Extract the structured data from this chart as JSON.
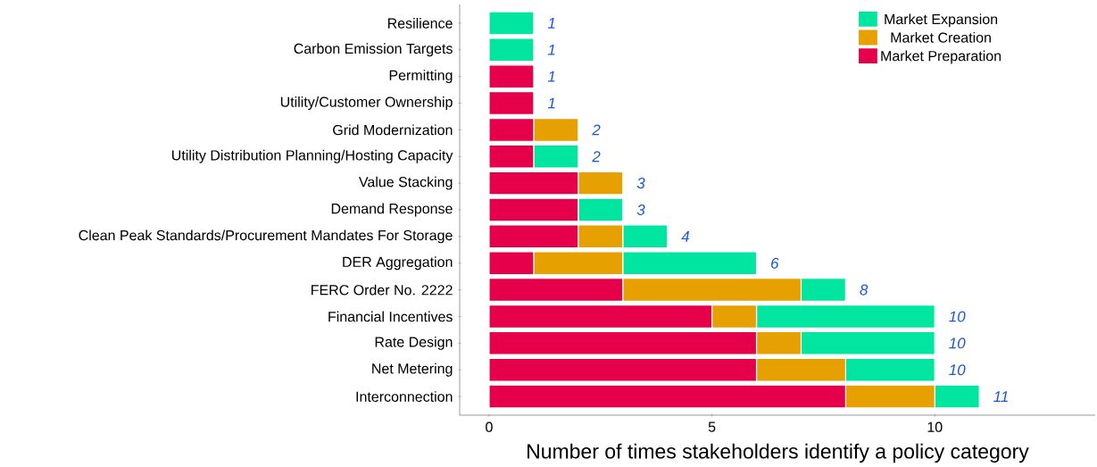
{
  "chart_data": {
    "type": "bar",
    "orientation": "horizontal",
    "stacked": true,
    "xlabel": "Number of times stakeholders identify a policy category",
    "categories": [
      "Resilience",
      "Carbon Emission Targets",
      "Permitting",
      "Utility/Customer Ownership",
      "Grid Modernization",
      "Utility Distribution Planning/Hosting Capacity",
      "Value Stacking",
      "Demand Response",
      "Clean Peak Standards/Procurement Mandates For Storage",
      "DER Aggregation",
      "FERC Order No. 2222",
      "Financial Incentives",
      "Rate Design",
      "Net Metering",
      "Interconnection"
    ],
    "series": [
      {
        "name": "Market Preparation",
        "color": "#e6004c",
        "values": [
          null,
          null,
          1,
          1,
          1,
          1,
          2,
          2,
          2,
          1,
          3,
          5,
          6,
          6,
          8
        ]
      },
      {
        "name": "Market Creation",
        "color": "#e6a000",
        "values": [
          null,
          null,
          null,
          null,
          1,
          null,
          1,
          null,
          1,
          2,
          4,
          1,
          1,
          2,
          2
        ]
      },
      {
        "name": "Market Expansion",
        "color": "#00e6a0",
        "values": [
          1,
          1,
          null,
          null,
          null,
          1,
          null,
          1,
          1,
          3,
          1,
          4,
          3,
          2,
          1
        ]
      }
    ],
    "totals": [
      "1",
      "1",
      "1",
      "1",
      "2",
      "2",
      "3",
      "3",
      "4",
      "6",
      "8",
      "10",
      "10",
      "10",
      "11"
    ],
    "xlim": [
      -0.66,
      13.6
    ],
    "xticks": [
      0,
      5,
      10
    ],
    "legend": "top right",
    "grid": false
  }
}
